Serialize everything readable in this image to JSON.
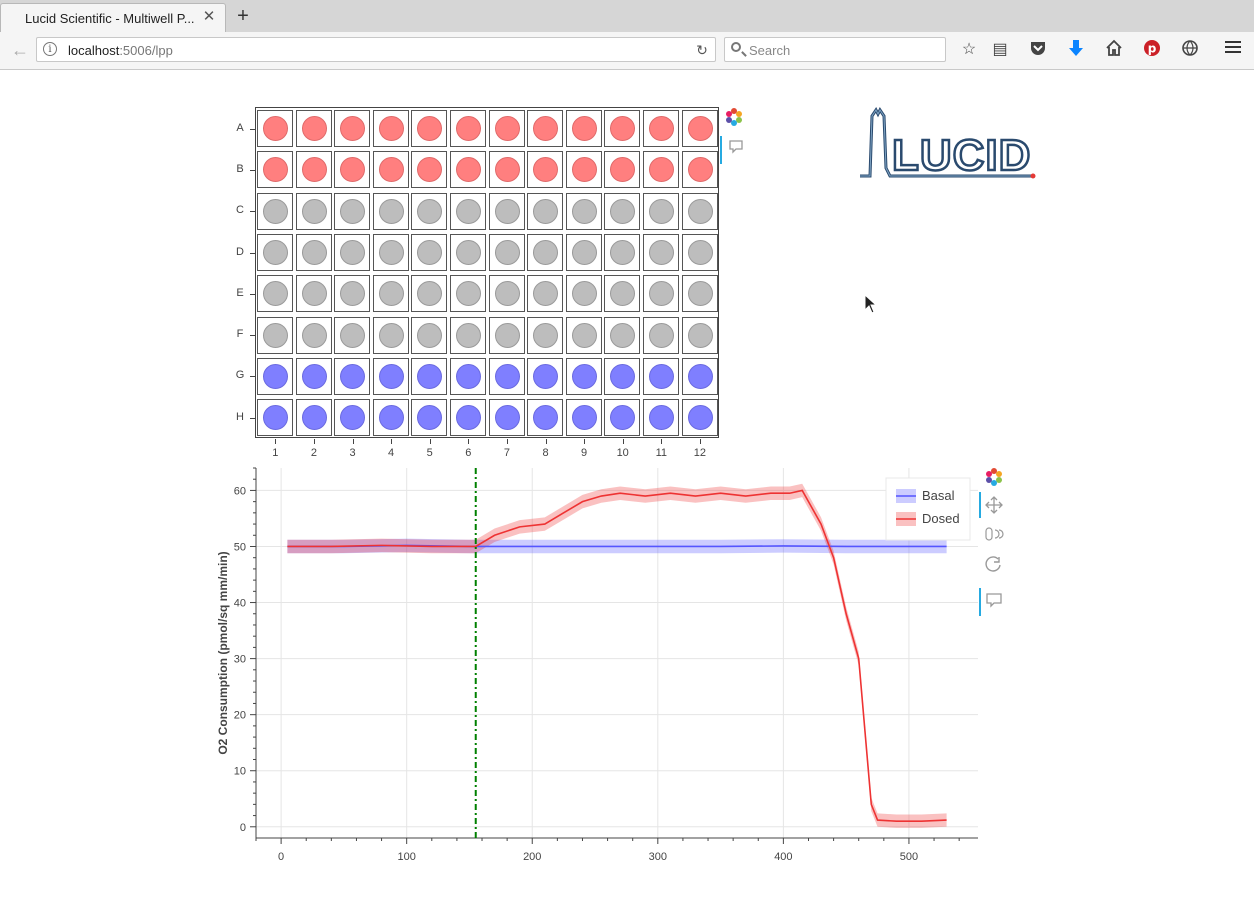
{
  "browser": {
    "tab_title": "Lucid Scientific - Multiwell P...",
    "tab_close": "✕",
    "new_tab": "+",
    "back": "←",
    "url_host": "localhost",
    "url_rest": ":5006/lpp",
    "info": "i",
    "reload": "↻",
    "search_placeholder": "Search",
    "toolbar_icons": [
      "bookmark-star-icon",
      "reading-list-icon",
      "pocket-icon",
      "download-icon",
      "home-icon",
      "pinterest-icon",
      "globe-icon",
      "menu-icon"
    ]
  },
  "plate": {
    "rows": [
      "A",
      "B",
      "C",
      "D",
      "E",
      "F",
      "G",
      "H"
    ],
    "columns": [
      "1",
      "2",
      "3",
      "4",
      "5",
      "6",
      "7",
      "8",
      "9",
      "10",
      "11",
      "12"
    ],
    "row_groups": {
      "A": "dosed",
      "B": "dosed",
      "C": "empty",
      "D": "empty",
      "E": "empty",
      "F": "empty",
      "G": "basal",
      "H": "basal"
    },
    "colors": {
      "dosed": "#ff7f7f",
      "empty": "#bdbdbd",
      "basal": "#7f7fff"
    }
  },
  "logo": {
    "text": "LUCID"
  },
  "chart_data": {
    "type": "line",
    "ylabel": "O2 Consumption (pmol/sq mm/min)",
    "xlabel": "",
    "xlim": [
      -20,
      555
    ],
    "ylim": [
      -2,
      64
    ],
    "xticks": [
      0,
      100,
      200,
      300,
      400,
      500
    ],
    "yticks": [
      0,
      10,
      20,
      30,
      40,
      50,
      60
    ],
    "grid": true,
    "legend_position": "top-right",
    "vline": {
      "x": 155,
      "style": "dash-dot",
      "color": "#008000"
    },
    "series": [
      {
        "name": "Basal",
        "color": "#5555ff",
        "band": 1.2,
        "x": [
          5,
          50,
          100,
          150,
          200,
          250,
          300,
          350,
          400,
          450,
          530
        ],
        "y": [
          50,
          50,
          50.2,
          50,
          50,
          50,
          50,
          50,
          50.1,
          50,
          50
        ]
      },
      {
        "name": "Dosed",
        "color": "#ee3333",
        "band": 1.2,
        "x": [
          5,
          40,
          80,
          120,
          155,
          170,
          190,
          210,
          225,
          240,
          255,
          270,
          290,
          310,
          330,
          350,
          370,
          390,
          405,
          415,
          420,
          430,
          440,
          450,
          460,
          470,
          475,
          490,
          510,
          530
        ],
        "y": [
          50,
          50,
          50.2,
          50,
          50,
          52,
          53.5,
          54,
          56,
          58,
          59,
          59.5,
          59,
          59.5,
          59,
          59.5,
          59,
          59.5,
          59.5,
          60,
          58,
          54,
          48,
          38,
          30,
          4,
          1.2,
          1,
          1,
          1.2
        ]
      }
    ]
  }
}
